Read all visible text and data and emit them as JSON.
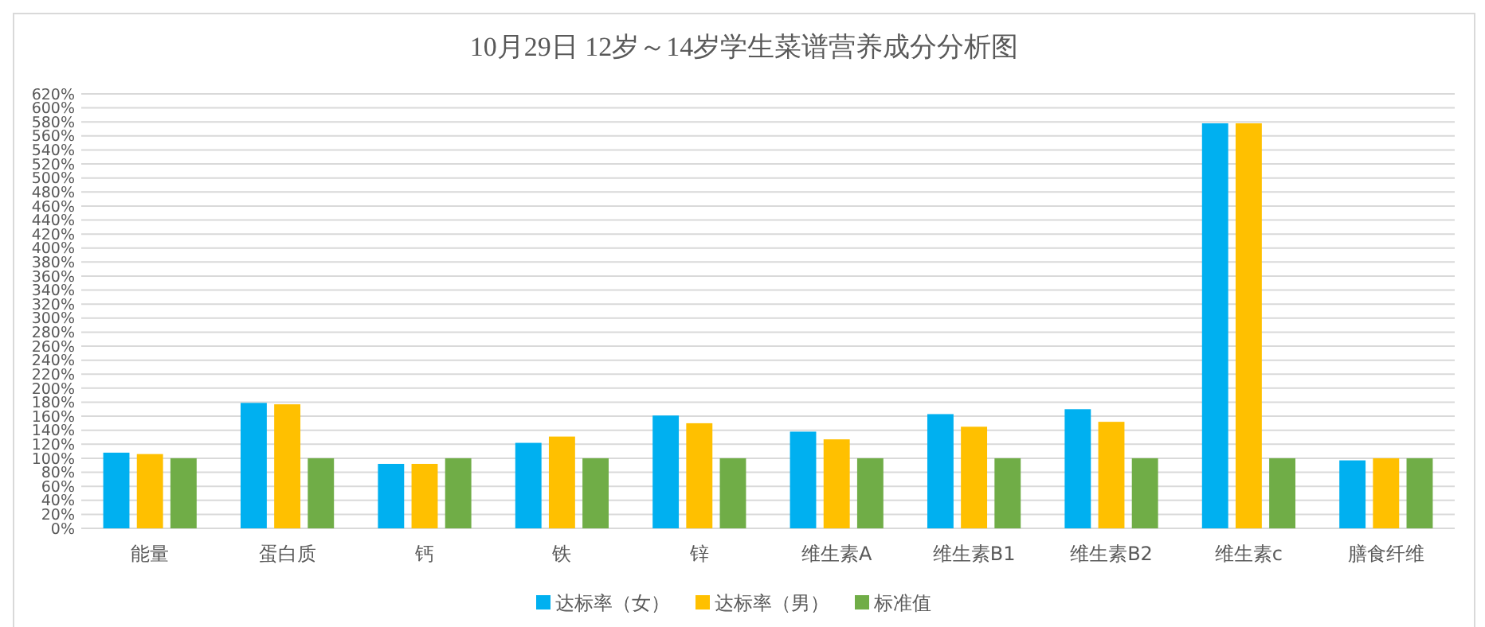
{
  "chart_data": {
    "type": "bar",
    "title": "10月29日 12岁～14岁学生菜谱营养成分分析图",
    "categories": [
      "能量",
      "蛋白质",
      "钙",
      "铁",
      "锌",
      "维生素A",
      "维生素B1",
      "维生素B2",
      "维生素c",
      "膳食纤维"
    ],
    "series": [
      {
        "name": "达标率（女）",
        "color": "#00b0f0",
        "values": [
          108,
          179,
          92,
          122,
          161,
          138,
          163,
          170,
          578,
          97
        ]
      },
      {
        "name": "达标率（男）",
        "color": "#ffc000",
        "values": [
          106,
          177,
          92,
          131,
          150,
          127,
          145,
          152,
          578,
          100
        ]
      },
      {
        "name": "标准值",
        "color": "#70ad47",
        "values": [
          100,
          100,
          100,
          100,
          100,
          100,
          100,
          100,
          100,
          100
        ]
      }
    ],
    "ylim": [
      0,
      620
    ],
    "yticks": [
      {
        "value": 0,
        "label": "0%"
      },
      {
        "value": 20,
        "label": "20%"
      },
      {
        "value": 40,
        "label": "40%"
      },
      {
        "value": 60,
        "label": "60%"
      },
      {
        "value": 80,
        "label": "80%"
      },
      {
        "value": 100,
        "label": "100%"
      },
      {
        "value": 120,
        "label": "120%"
      },
      {
        "value": 140,
        "label": "140%"
      },
      {
        "value": 160,
        "label": "160%"
      },
      {
        "value": 180,
        "label": "180%"
      },
      {
        "value": 200,
        "label": "200%"
      },
      {
        "value": 220,
        "label": "220%"
      },
      {
        "value": 240,
        "label": "240%"
      },
      {
        "value": 260,
        "label": "260%"
      },
      {
        "value": 280,
        "label": "280%"
      },
      {
        "value": 300,
        "label": "300%"
      },
      {
        "value": 320,
        "label": "320%"
      },
      {
        "value": 340,
        "label": "340%"
      },
      {
        "value": 360,
        "label": "360%"
      },
      {
        "value": 380,
        "label": "380%"
      },
      {
        "value": 400,
        "label": "400%"
      },
      {
        "value": 420,
        "label": "420%"
      },
      {
        "value": 440,
        "label": "440%"
      },
      {
        "value": 460,
        "label": "460%"
      },
      {
        "value": 480,
        "label": "480%"
      },
      {
        "value": 500,
        "label": "500%"
      },
      {
        "value": 520,
        "label": "520%"
      },
      {
        "value": 540,
        "label": "540%"
      },
      {
        "value": 560,
        "label": "560%"
      },
      {
        "value": 580,
        "label": "580%"
      },
      {
        "value": 600,
        "label": "600%"
      },
      {
        "value": 620,
        "label": "620%"
      }
    ],
    "grid": "y",
    "legend": "bottom"
  }
}
